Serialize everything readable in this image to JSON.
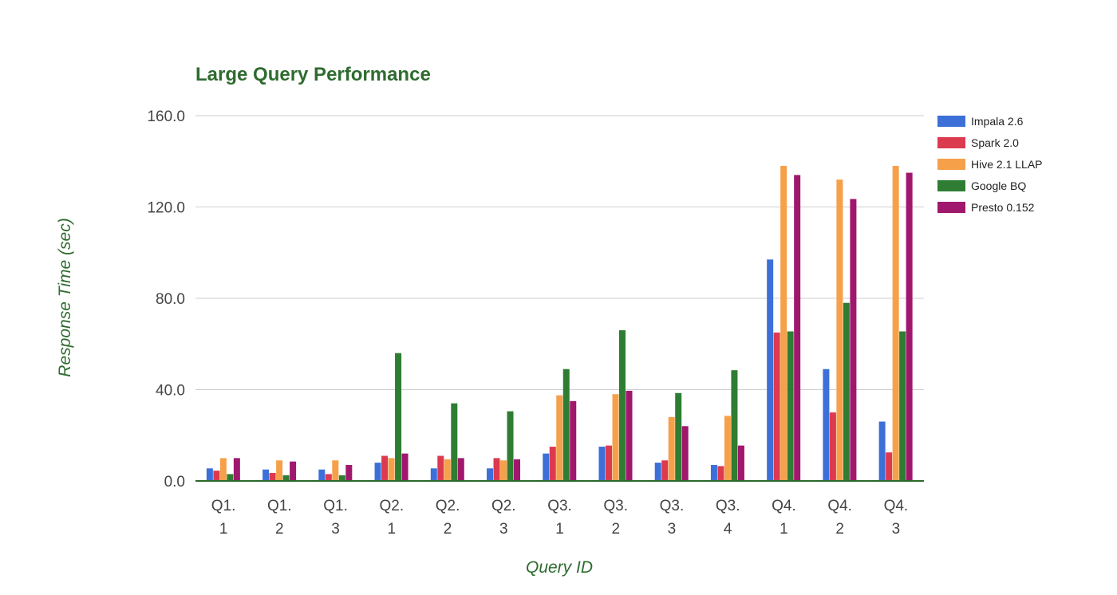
{
  "chart_data": {
    "type": "bar",
    "title": "Large Query Performance",
    "xlabel": "Query ID",
    "ylabel": "Response Time (sec)",
    "ylim": [
      0,
      160
    ],
    "yticks": [
      "0.0",
      "40.0",
      "80.0",
      "120.0",
      "160.0"
    ],
    "categories": [
      [
        "Q1.",
        "1"
      ],
      [
        "Q1.",
        "2"
      ],
      [
        "Q1.",
        "3"
      ],
      [
        "Q2.",
        "1"
      ],
      [
        "Q2.",
        "2"
      ],
      [
        "Q2.",
        "3"
      ],
      [
        "Q3.",
        "1"
      ],
      [
        "Q3.",
        "2"
      ],
      [
        "Q3.",
        "3"
      ],
      [
        "Q3.",
        "4"
      ],
      [
        "Q4.",
        "1"
      ],
      [
        "Q4.",
        "2"
      ],
      [
        "Q4.",
        "3"
      ]
    ],
    "grid": true,
    "legend_position": "right",
    "series": [
      {
        "name": "Impala 2.6",
        "color": "#3c6fd8",
        "values": [
          5.5,
          5,
          5,
          8,
          5.5,
          5.5,
          12,
          15,
          8,
          7,
          97,
          49,
          26
        ]
      },
      {
        "name": "Spark 2.0",
        "color": "#dc3a4f",
        "values": [
          4.5,
          3.5,
          3,
          11,
          11,
          10,
          15,
          15.5,
          9,
          6.5,
          65,
          30,
          12.5
        ]
      },
      {
        "name": "Hive 2.1 LLAP",
        "color": "#f6a04a",
        "values": [
          10,
          9,
          9,
          10,
          9.5,
          9,
          37.5,
          38,
          28,
          28.5,
          138,
          132,
          138
        ]
      },
      {
        "name": "Google BQ",
        "color": "#2e7d32",
        "values": [
          3,
          2.5,
          2.5,
          56,
          34,
          30.5,
          49,
          66,
          38.5,
          48.5,
          65.5,
          78,
          65.5
        ]
      },
      {
        "name": "Presto 0.152",
        "color": "#a0176e",
        "values": [
          10,
          8.5,
          7,
          12,
          10,
          9.5,
          35,
          39.5,
          24,
          15.5,
          134,
          123.5,
          135
        ]
      }
    ]
  }
}
